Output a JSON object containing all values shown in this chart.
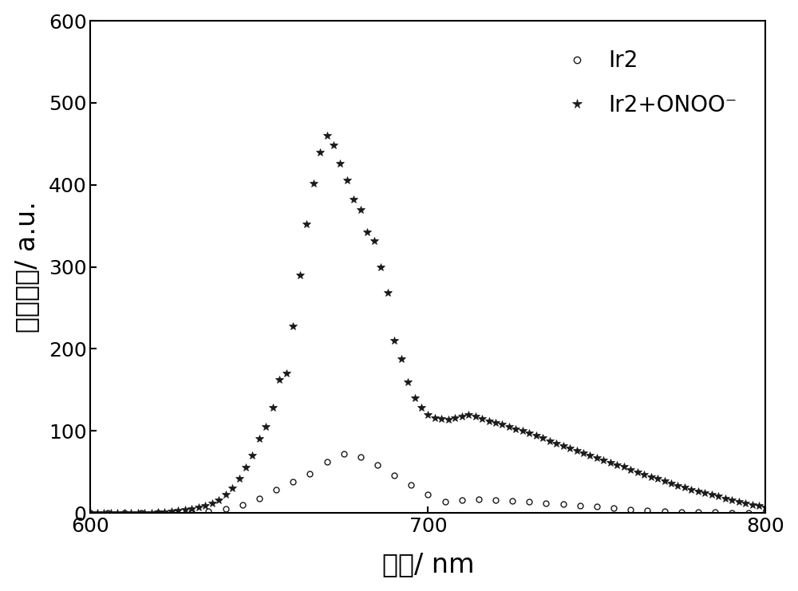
{
  "ir2_x": [
    600,
    605,
    610,
    615,
    620,
    625,
    630,
    635,
    640,
    645,
    650,
    655,
    660,
    665,
    670,
    675,
    680,
    685,
    690,
    695,
    700,
    705,
    710,
    715,
    720,
    725,
    730,
    735,
    740,
    745,
    750,
    755,
    760,
    765,
    770,
    775,
    780,
    785,
    790,
    795,
    800
  ],
  "ir2_y": [
    0,
    0,
    0,
    0,
    0,
    0,
    1,
    2,
    5,
    10,
    18,
    28,
    38,
    48,
    62,
    72,
    68,
    58,
    46,
    34,
    22,
    14,
    16,
    17,
    16,
    15,
    14,
    12,
    11,
    9,
    8,
    6,
    4,
    3,
    2,
    1,
    1,
    1,
    0,
    0,
    0
  ],
  "onoo_x": [
    600,
    602,
    604,
    606,
    608,
    610,
    612,
    614,
    616,
    618,
    620,
    622,
    624,
    626,
    628,
    630,
    632,
    634,
    636,
    638,
    640,
    642,
    644,
    646,
    648,
    650,
    652,
    654,
    656,
    658,
    660,
    662,
    664,
    666,
    668,
    670,
    672,
    674,
    676,
    678,
    680,
    682,
    684,
    686,
    688,
    690,
    692,
    694,
    696,
    698,
    700,
    702,
    704,
    706,
    708,
    710,
    712,
    714,
    716,
    718,
    720,
    722,
    724,
    726,
    728,
    730,
    732,
    734,
    736,
    738,
    740,
    742,
    744,
    746,
    748,
    750,
    752,
    754,
    756,
    758,
    760,
    762,
    764,
    766,
    768,
    770,
    772,
    774,
    776,
    778,
    780,
    782,
    784,
    786,
    788,
    790,
    792,
    794,
    796,
    798,
    800
  ],
  "onoo_y": [
    0,
    0,
    0,
    0,
    0,
    0,
    0,
    0,
    0,
    0,
    1,
    1,
    2,
    3,
    4,
    5,
    7,
    9,
    12,
    16,
    22,
    30,
    42,
    55,
    70,
    90,
    105,
    128,
    162,
    170,
    228,
    290,
    352,
    402,
    440,
    460,
    448,
    426,
    406,
    382,
    370,
    342,
    332,
    300,
    268,
    210,
    188,
    160,
    140,
    128,
    120,
    116,
    115,
    114,
    116,
    118,
    120,
    118,
    115,
    112,
    110,
    108,
    105,
    102,
    100,
    97,
    94,
    91,
    88,
    85,
    82,
    79,
    76,
    73,
    70,
    67,
    64,
    61,
    58,
    56,
    53,
    50,
    47,
    44,
    42,
    39,
    36,
    33,
    31,
    28,
    26,
    24,
    22,
    20,
    18,
    16,
    14,
    12,
    10,
    9,
    7
  ],
  "xlabel": "波长/ nm",
  "ylabel": "磷光强度/ a.u.",
  "ylim": [
    0,
    600
  ],
  "xlim": [
    600,
    800
  ],
  "yticks": [
    0,
    100,
    200,
    300,
    400,
    500,
    600
  ],
  "xticks": [
    600,
    700,
    800
  ],
  "legend_ir2": "Ir2",
  "legend_onoo": "Ir2+ONOO⁻",
  "color": "#1a1a1a",
  "marker_ir2": "o",
  "marker_onoo": "*",
  "markersize_ir2": 5,
  "markersize_onoo": 7,
  "bg_color": "#ffffff"
}
